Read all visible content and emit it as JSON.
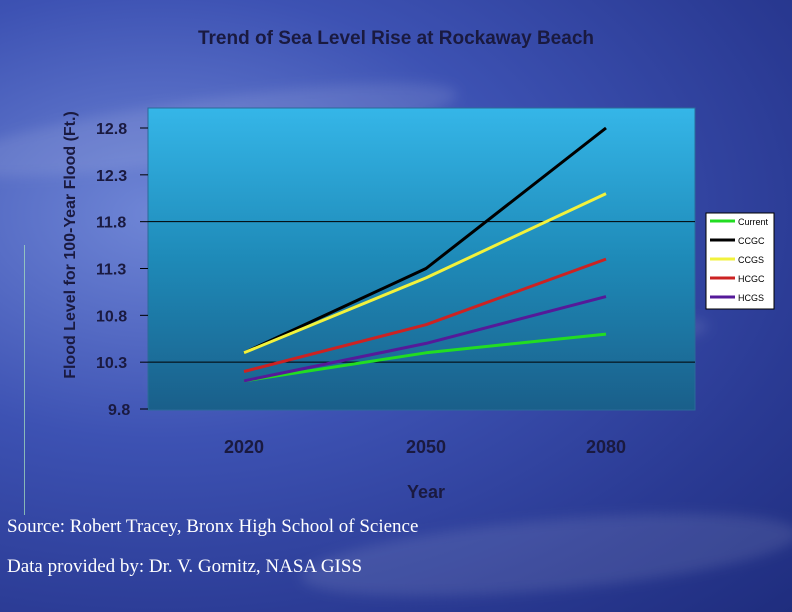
{
  "credits": {
    "source": "Source: Robert Tracey, Bronx High School of Science",
    "data_by": "Data provided by: Dr. V. Gornitz, NASA GISS"
  },
  "chart_data": {
    "type": "line",
    "title": "Trend of Sea Level Rise at Rockaway Beach",
    "xlabel": "Year",
    "ylabel": "Flood Level for 100-Year Flood (Ft.)",
    "categories": [
      "2020",
      "2050",
      "2080"
    ],
    "ylim": [
      9.8,
      12.8
    ],
    "yticks": [
      "12.8",
      "12.3",
      "11.8",
      "11.3",
      "10.8",
      "10.3",
      "9.8"
    ],
    "gridlines": [
      11.8,
      10.3
    ],
    "legend_position": "right",
    "series": [
      {
        "name": "Current",
        "color": "#22dd22",
        "values": [
          10.1,
          10.4,
          10.6
        ]
      },
      {
        "name": "CCGC",
        "color": "#000000",
        "values": [
          10.4,
          11.3,
          12.8
        ]
      },
      {
        "name": "CCGS",
        "color": "#f2f23c",
        "values": [
          10.4,
          11.2,
          12.1
        ]
      },
      {
        "name": "HCGC",
        "color": "#cc2222",
        "values": [
          10.2,
          10.7,
          11.4
        ]
      },
      {
        "name": "HCGS",
        "color": "#551a99",
        "values": [
          10.1,
          10.5,
          11.0
        ]
      }
    ]
  }
}
